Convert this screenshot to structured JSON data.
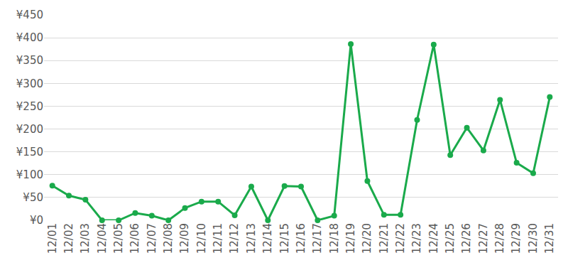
{
  "chart_data": {
    "type": "line",
    "categories": [
      "12/01",
      "12/02",
      "12/03",
      "12/04",
      "12/05",
      "12/06",
      "12/07",
      "12/08",
      "12/09",
      "12/10",
      "12/11",
      "12/12",
      "12/13",
      "12/14",
      "12/15",
      "12/16",
      "12/17",
      "12/18",
      "12/19",
      "12/20",
      "12/21",
      "12/22",
      "12/23",
      "12/24",
      "12/25",
      "12/26",
      "12/27",
      "12/28",
      "12/29",
      "12/30",
      "12/31"
    ],
    "values": [
      76,
      54,
      45,
      0,
      0,
      16,
      10,
      0,
      27,
      41,
      41,
      11,
      74,
      0,
      75,
      74,
      0,
      10,
      386,
      86,
      12,
      12,
      220,
      385,
      143,
      203,
      153,
      264,
      126,
      103,
      270
    ],
    "color": "#1aaa4b",
    "marker": "circle",
    "ylim": [
      0,
      450
    ],
    "yticks": [
      {
        "value": 0,
        "label": "¥0"
      },
      {
        "value": 50,
        "label": "¥50"
      },
      {
        "value": 100,
        "label": "¥100"
      },
      {
        "value": 150,
        "label": "¥150"
      },
      {
        "value": 200,
        "label": "¥200"
      },
      {
        "value": 250,
        "label": "¥250"
      },
      {
        "value": 300,
        "label": "¥300"
      },
      {
        "value": 350,
        "label": "¥350"
      },
      {
        "value": 400,
        "label": "¥400"
      },
      {
        "value": 450,
        "label": "¥450"
      }
    ],
    "grid": true
  }
}
